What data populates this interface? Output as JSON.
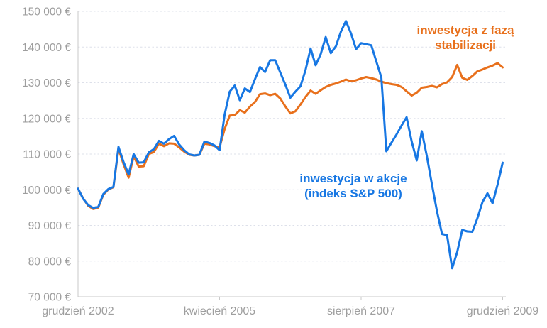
{
  "chart_data": {
    "type": "line",
    "title": "",
    "currency_unit": "€",
    "x_axis": {
      "start_month": "grudzień 2002",
      "tick_labels": [
        {
          "label": "grudzień 2002",
          "month_index": 0
        },
        {
          "label": "kwiecień 2005",
          "month_index": 28
        },
        {
          "label": "sierpień 2007",
          "month_index": 56
        },
        {
          "label": "grudzień 2009",
          "month_index": 84
        }
      ]
    },
    "y_axis": {
      "min": 70000,
      "max": 150000,
      "step": 10000,
      "tick_labels": [
        "150 000 €",
        "140 000 €",
        "130 000 €",
        "120 000 €",
        "110 000 €",
        "100 000 €",
        "90 000 €",
        "80 000 €",
        "70 000 €"
      ],
      "grid": "dashed"
    },
    "legend_position": "annotations-on-plot",
    "series": [
      {
        "name": "inwestycja z fazą stabilizacji",
        "color": "#e8701c",
        "values": [
          100300,
          97600,
          95500,
          94600,
          95000,
          98600,
          100100,
          100700,
          111500,
          107200,
          103400,
          109400,
          106500,
          106600,
          110000,
          110600,
          112900,
          112200,
          113000,
          112900,
          111900,
          110700,
          109800,
          109600,
          109800,
          112900,
          112700,
          112200,
          111900,
          117000,
          120800,
          120900,
          122300,
          121600,
          123300,
          124600,
          126800,
          127000,
          126500,
          126900,
          125600,
          123400,
          121400,
          122000,
          123900,
          126000,
          127800,
          126900,
          127900,
          128800,
          129400,
          129800,
          130300,
          130900,
          130400,
          130700,
          131200,
          131600,
          131300,
          130900,
          130300,
          129900,
          129600,
          129400,
          128800,
          127600,
          126400,
          127200,
          128600,
          128800,
          129100,
          128700,
          129600,
          130100,
          131600,
          135000,
          131400,
          130800,
          131900,
          133200,
          133700,
          134300,
          134800,
          135500,
          134300
        ]
      },
      {
        "name": "inwestycja w akcje (indeks S&P 500)",
        "color": "#1777e3",
        "values": [
          100300,
          97500,
          95700,
          94900,
          95200,
          98800,
          100200,
          100800,
          112000,
          107800,
          104300,
          110000,
          107600,
          107700,
          110500,
          111400,
          113700,
          112900,
          114200,
          115100,
          112700,
          111100,
          109900,
          109600,
          109800,
          113500,
          113100,
          112400,
          111100,
          121000,
          127500,
          129200,
          125100,
          128400,
          127400,
          131000,
          134400,
          133000,
          136300,
          136300,
          132900,
          129500,
          125800,
          127500,
          129000,
          133500,
          139600,
          134900,
          138000,
          142800,
          138300,
          140200,
          144300,
          147300,
          143800,
          139400,
          141100,
          140800,
          140500,
          136000,
          131500,
          110800,
          113200,
          115500,
          118000,
          120300,
          113500,
          108200,
          116400,
          109500,
          101500,
          94000,
          87600,
          87300,
          78000,
          82500,
          88700,
          88300,
          88200,
          92000,
          96500,
          99000,
          96200,
          101500,
          107600
        ]
      }
    ]
  },
  "annotations": {
    "stabilization": {
      "text": "inwestycja z fazą\nstabilizacji"
    },
    "stocks": {
      "text": "inwestycja w akcje\n(indeks S&P 500)"
    }
  },
  "colors": {
    "axis_line": "#c9c9c9",
    "grid_line": "#dde0ea",
    "axis_text": "#9e9e9e",
    "background": "#ffffff"
  }
}
